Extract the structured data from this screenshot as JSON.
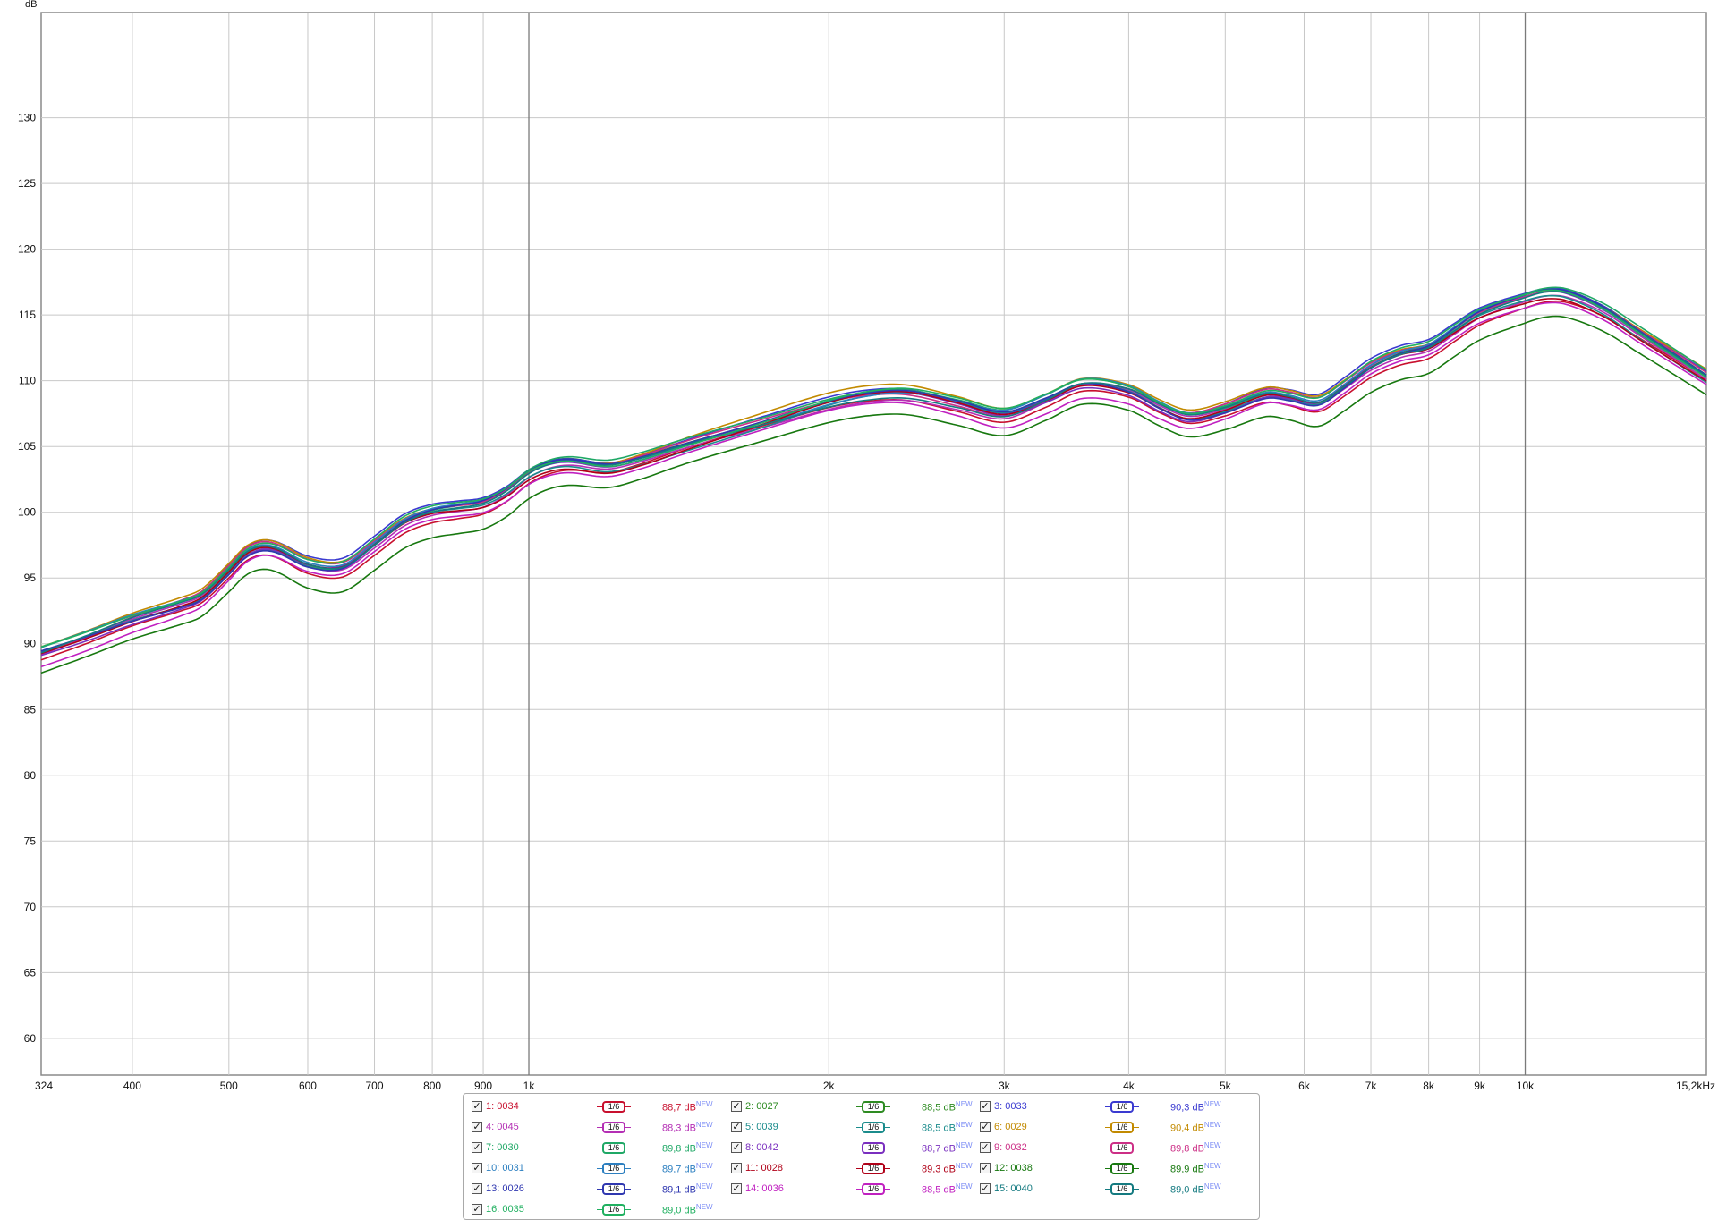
{
  "chart_data": {
    "type": "line",
    "y_unit_label": "dB",
    "x_unit_label": "15,2kHz",
    "xlim": [
      324,
      15200
    ],
    "ylim": [
      57.2,
      138
    ],
    "x_scale": "log",
    "grid": true,
    "y_ticks": [
      60,
      65,
      70,
      75,
      80,
      85,
      90,
      95,
      100,
      105,
      110,
      115,
      120,
      125,
      130
    ],
    "x_ticks": [
      {
        "value": 324,
        "label": "324"
      },
      {
        "value": 400,
        "label": "400"
      },
      {
        "value": 500,
        "label": "500"
      },
      {
        "value": 600,
        "label": "600"
      },
      {
        "value": 700,
        "label": "700"
      },
      {
        "value": 800,
        "label": "800"
      },
      {
        "value": 900,
        "label": "900"
      },
      {
        "value": 1000,
        "label": "1k"
      },
      {
        "value": 2000,
        "label": "2k"
      },
      {
        "value": 3000,
        "label": "3k"
      },
      {
        "value": 4000,
        "label": "4k"
      },
      {
        "value": 5000,
        "label": "5k"
      },
      {
        "value": 6000,
        "label": "6k"
      },
      {
        "value": 7000,
        "label": "7k"
      },
      {
        "value": 8000,
        "label": "8k"
      },
      {
        "value": 9000,
        "label": "9k"
      },
      {
        "value": 10000,
        "label": "10k"
      }
    ],
    "base_curve": {
      "x": [
        324,
        360,
        400,
        450,
        470,
        500,
        520,
        540,
        560,
        600,
        650,
        700,
        750,
        800,
        850,
        900,
        950,
        1000,
        1050,
        1100,
        1200,
        1300,
        1400,
        1500,
        1700,
        2000,
        2200,
        2400,
        2700,
        3000,
        3300,
        3600,
        4000,
        4300,
        4600,
        5000,
        5500,
        5800,
        6200,
        6600,
        7000,
        7500,
        8000,
        8500,
        9000,
        10000,
        10500,
        11000,
        12000,
        13000,
        15200
      ],
      "y": [
        89.3,
        90.5,
        91.8,
        93.0,
        93.6,
        95.5,
        96.8,
        97.3,
        97.1,
        96.0,
        95.8,
        97.5,
        99.2,
        100.0,
        100.3,
        100.6,
        101.5,
        102.8,
        103.5,
        103.7,
        103.4,
        104.0,
        104.8,
        105.5,
        106.7,
        108.3,
        108.9,
        109.0,
        108.2,
        107.4,
        108.5,
        109.7,
        109.2,
        108.0,
        107.2,
        107.8,
        108.9,
        108.7,
        108.3,
        109.6,
        111.0,
        112.0,
        112.5,
        113.8,
        115.0,
        116.2,
        116.6,
        116.5,
        115.3,
        113.6,
        110.3
      ]
    },
    "series": [
      {
        "label": "1: 0034",
        "smoothing": "1/6",
        "level": "88,7 dB",
        "badge": "NEW",
        "color": "#c8102e",
        "offset": -0.5
      },
      {
        "label": "2: 0027",
        "smoothing": "1/6",
        "level": "88,5 dB",
        "badge": "NEW",
        "color": "#2e8b22",
        "offset": 0.1
      },
      {
        "label": "3: 0033",
        "smoothing": "1/6",
        "level": "90,3 dB",
        "badge": "NEW",
        "color": "#3a3ad0",
        "offset": 0.4
      },
      {
        "label": "4: 0045",
        "smoothing": "1/6",
        "level": "88,3 dB",
        "badge": "NEW",
        "color": "#b42fb4",
        "offset": -0.2
      },
      {
        "label": "5: 0039",
        "smoothing": "1/6",
        "level": "88,5 dB",
        "badge": "NEW",
        "color": "#1b8c8c",
        "offset": -0.1
      },
      {
        "label": "6: 0029",
        "smoothing": "1/6",
        "level": "90,4 dB",
        "badge": "NEW",
        "color": "#c28a00",
        "offset": 0.5
      },
      {
        "label": "7: 0030",
        "smoothing": "1/6",
        "level": "89,8 dB",
        "badge": "NEW",
        "color": "#1fa866",
        "offset": 0.3
      },
      {
        "label": "8: 0042",
        "smoothing": "1/6",
        "level": "88,7 dB",
        "badge": "NEW",
        "color": "#7a2fbf",
        "offset": 0.0
      },
      {
        "label": "9: 0032",
        "smoothing": "1/6",
        "level": "89,8 dB",
        "badge": "NEW",
        "color": "#cc2f86",
        "offset": 0.2
      },
      {
        "label": "10: 0031",
        "smoothing": "1/6",
        "level": "89,7 dB",
        "badge": "NEW",
        "color": "#2c7fc0",
        "offset": 0.2
      },
      {
        "label": "11: 0028",
        "smoothing": "1/6",
        "level": "89,3 dB",
        "badge": "NEW",
        "color": "#b00018",
        "offset": -0.1
      },
      {
        "label": "12: 0038",
        "smoothing": "1/6",
        "level": "89,9 dB",
        "badge": "NEW",
        "color": "#17780f",
        "offset": -1.6
      },
      {
        "label": "13: 0026",
        "smoothing": "1/6",
        "level": "89,1 dB",
        "badge": "NEW",
        "color": "#2f37b0",
        "offset": 0.1
      },
      {
        "label": "14: 0036",
        "smoothing": "1/6",
        "level": "88,5 dB",
        "badge": "NEW",
        "color": "#c020c0",
        "offset": -0.7
      },
      {
        "label": "15: 0040",
        "smoothing": "1/6",
        "level": "89,0 dB",
        "badge": "NEW",
        "color": "#147a80",
        "offset": 0.0
      },
      {
        "label": "16: 0035",
        "smoothing": "1/6",
        "level": "89,0 dB",
        "badge": "NEW",
        "color": "#20b060",
        "offset": 0.3
      }
    ]
  },
  "legend": {
    "checked_glyph": "✓"
  }
}
